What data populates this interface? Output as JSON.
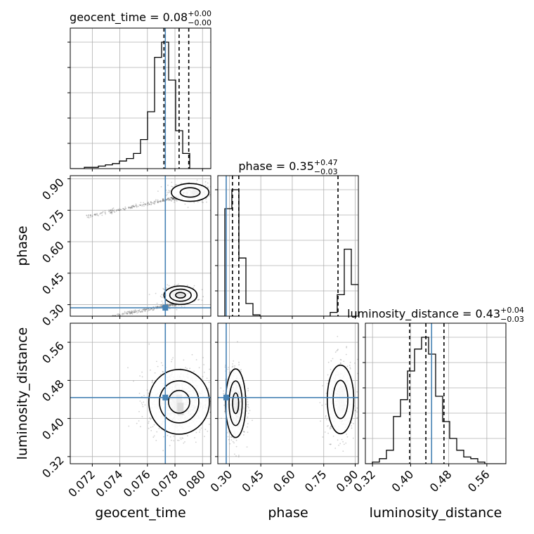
{
  "colors": {
    "truth": "#4682b4",
    "line": "#000000",
    "scatter": "#555555",
    "grid": "#b0b0b0"
  },
  "chart_data": {
    "type": "corner",
    "parameters": [
      "geocent_time",
      "phase",
      "luminosity_distance"
    ],
    "truths": [
      0.0773,
      0.285,
      0.444
    ],
    "ranges": [
      [
        0.0704,
        0.0806
      ],
      [
        0.245,
        0.915
      ],
      [
        0.305,
        0.6
      ]
    ],
    "ticks": [
      {
        "values": [
          0.072,
          0.074,
          0.076,
          0.078,
          0.08
        ],
        "labels": [
          "0.072",
          "0.074",
          "0.076",
          "0.078",
          "0.080"
        ]
      },
      {
        "values": [
          0.3,
          0.45,
          0.6,
          0.75,
          0.9
        ],
        "labels": [
          "0.30",
          "0.45",
          "0.60",
          "0.75",
          "0.90"
        ]
      },
      {
        "values": [
          0.32,
          0.4,
          0.48,
          0.56
        ],
        "labels": [
          "0.32",
          "0.40",
          "0.48",
          "0.56"
        ]
      }
    ],
    "titles": [
      {
        "name": "geocent_time",
        "value": "0.08",
        "plus": "+0.00",
        "minus": "−0.00"
      },
      {
        "name": "phase",
        "value": "0.35",
        "plus": "+0.47",
        "minus": "−0.03"
      },
      {
        "name": "luminosity_distance",
        "value": "0.43",
        "plus": "+0.04",
        "minus": "−0.03"
      }
    ],
    "quantiles": [
      [
        0.0772,
        0.0783,
        0.079
      ],
      [
        0.315,
        0.345,
        0.818
      ],
      [
        0.398,
        0.432,
        0.47
      ]
    ],
    "histograms": [
      {
        "edges_start": 0.0704,
        "bin_width": 0.00051,
        "counts": [
          0,
          0,
          1,
          1,
          2,
          3,
          4,
          6,
          8,
          12,
          23,
          45,
          88,
          100,
          70,
          30,
          12,
          0,
          0,
          0
        ]
      },
      {
        "edges_start": 0.245,
        "bin_width": 0.0335,
        "counts": [
          0,
          85,
          100,
          46,
          10,
          1,
          0,
          0,
          0,
          0,
          0,
          0,
          0,
          0,
          0,
          0,
          3,
          17,
          53,
          25
        ]
      },
      {
        "edges_start": 0.305,
        "bin_width": 0.01475,
        "counts": [
          0,
          1,
          3,
          8,
          28,
          38,
          55,
          68,
          75,
          65,
          40,
          25,
          15,
          8,
          4,
          3,
          1,
          0,
          0,
          0
        ]
      }
    ],
    "grid": true
  }
}
